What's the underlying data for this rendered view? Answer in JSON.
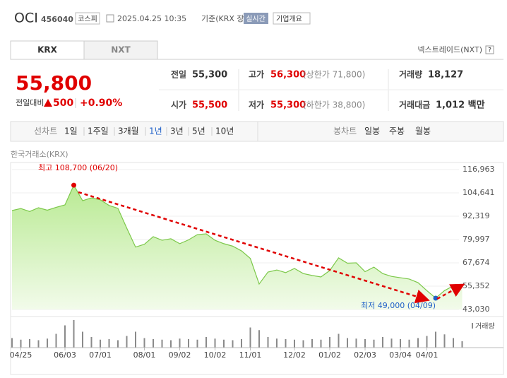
{
  "header": {
    "name": "OCI",
    "code": "456040",
    "market": "코스피",
    "datetime": "2025.04.25 10:35",
    "basis": "기준(KRX 장중)",
    "realtime": "실시간",
    "company": "기업개요"
  },
  "tabs": {
    "items": [
      "KRX",
      "NXT"
    ],
    "right": "넥스트레이드(NXT)",
    "help": "?"
  },
  "quote": {
    "price": "55,800",
    "change_label": "전일대비",
    "change": "500",
    "change_pct": "+0.90%",
    "rows": [
      [
        {
          "label": "전일",
          "value": "55,300"
        },
        {
          "label": "고가",
          "value": "56,300",
          "note": "(상한가 71,800)"
        },
        {
          "label": "거래량",
          "value": "18,127"
        }
      ],
      [
        {
          "label": "시가",
          "value": "55,500"
        },
        {
          "label": "저가",
          "value": "55,300",
          "note": "(하한가 38,800)"
        },
        {
          "label": "거래대금",
          "value": "1,012 백만"
        }
      ]
    ]
  },
  "periods": {
    "line_label": "선차트",
    "line_items": [
      "1일",
      "1주일",
      "3개월",
      "1년",
      "3년",
      "5년",
      "10년"
    ],
    "selected": "1년",
    "candle_label": "봉차트",
    "candle_items": [
      "일봉",
      "주봉",
      "월봉"
    ]
  },
  "chart_data": {
    "type": "area",
    "source": "한국거래소(KRX)",
    "color": "#7cc84a",
    "fill": "#c9efad",
    "categories": [
      null,
      "04/25",
      null,
      null,
      null,
      null,
      "06/03",
      null,
      null,
      null,
      "07/01",
      null,
      null,
      null,
      null,
      "08/01",
      null,
      null,
      null,
      "09/02",
      null,
      null,
      null,
      "10/02",
      null,
      null,
      null,
      "11/01",
      null,
      null,
      null,
      null,
      "12/02",
      null,
      null,
      null,
      "01/02",
      null,
      null,
      null,
      "02/03",
      null,
      null,
      null,
      "03/04",
      null,
      null,
      "04/01",
      null,
      null,
      null,
      null
    ],
    "values": [
      95300,
      96400,
      94800,
      96800,
      95500,
      97000,
      98300,
      108700,
      100500,
      102000,
      101000,
      98000,
      96500,
      86000,
      76000,
      77500,
      81500,
      79600,
      80400,
      77800,
      79800,
      82600,
      83000,
      79600,
      77800,
      76500,
      74000,
      70000,
      56500,
      62800,
      63900,
      62500,
      64700,
      62000,
      61000,
      60200,
      63600,
      70300,
      67500,
      67700,
      63000,
      65400,
      62000,
      60500,
      59800,
      59100,
      57200,
      53000,
      49000,
      53000,
      55500,
      55800
    ],
    "ylim": [
      43030,
      116963
    ],
    "yticks": [
      {
        "value": 43030,
        "label": "43,030"
      },
      {
        "value": 55352,
        "label": "55,352"
      },
      {
        "value": 67674,
        "label": "67,674"
      },
      {
        "value": 79997,
        "label": "79,997"
      },
      {
        "value": 92319,
        "label": "92,319"
      },
      {
        "value": 104641,
        "label": "104,641"
      },
      {
        "value": 116963,
        "label": "116,963"
      }
    ],
    "annotations": [
      {
        "text": "최고 108,700 (06/20)",
        "color": "#e00000"
      },
      {
        "text": "최저 49,000 (04/09)",
        "color": "#1e5fc8"
      }
    ],
    "volume": {
      "name": "거래량",
      "color": "#8a8a8a",
      "values": [
        180000,
        150000,
        160000,
        140000,
        170000,
        260000,
        420000,
        520000,
        300000,
        200000,
        150000,
        160000,
        140000,
        220000,
        300000,
        180000,
        160000,
        150000,
        140000,
        170000,
        160000,
        150000,
        200000,
        170000,
        150000,
        140000,
        160000,
        380000,
        330000,
        200000,
        170000,
        160000,
        150000,
        140000,
        160000,
        150000,
        200000,
        260000,
        180000,
        170000,
        160000,
        150000,
        200000,
        170000,
        160000,
        150000,
        180000,
        220000,
        300000,
        250000,
        180000,
        120000
      ]
    }
  }
}
